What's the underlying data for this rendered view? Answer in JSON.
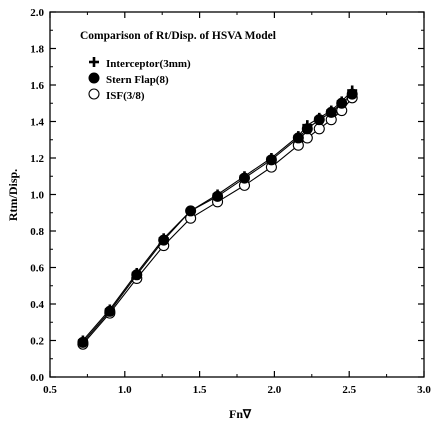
{
  "chart_data": {
    "type": "line",
    "title": "Comparison of Rt/Disp. of HSVA Model",
    "xlabel": "Fn∇",
    "ylabel": "Rtm/Disp.",
    "xlim": [
      0.5,
      3.0
    ],
    "ylim": [
      0.0,
      2.0
    ],
    "xticks": [
      "0.5",
      "1.0",
      "1.5",
      "2.0",
      "2.5",
      "3.0"
    ],
    "yticks": [
      "0.0",
      "0.2",
      "0.4",
      "0.6",
      "0.8",
      "1.0",
      "1.2",
      "1.4",
      "1.6",
      "1.8",
      "2.0"
    ],
    "grid": false,
    "legend_position": "top-left",
    "series": [
      {
        "name": "Interceptor(3mm)",
        "marker": "plus",
        "x": [
          0.72,
          0.9,
          1.08,
          1.26,
          1.44,
          1.62,
          1.8,
          1.98,
          2.16,
          2.22,
          2.3,
          2.38,
          2.45,
          2.52
        ],
        "y": [
          0.2,
          0.37,
          0.57,
          0.76,
          0.91,
          1.0,
          1.1,
          1.2,
          1.32,
          1.38,
          1.42,
          1.46,
          1.51,
          1.57
        ]
      },
      {
        "name": "Stern Flap(8)",
        "marker": "filled-circle",
        "x": [
          0.72,
          0.9,
          1.08,
          1.26,
          1.44,
          1.62,
          1.8,
          1.98,
          2.16,
          2.22,
          2.3,
          2.38,
          2.45,
          2.52
        ],
        "y": [
          0.19,
          0.36,
          0.56,
          0.75,
          0.91,
          0.99,
          1.09,
          1.19,
          1.31,
          1.36,
          1.41,
          1.45,
          1.5,
          1.55
        ]
      },
      {
        "name": "ISF(3/8)",
        "marker": "open-circle",
        "x": [
          0.72,
          0.9,
          1.08,
          1.26,
          1.44,
          1.62,
          1.8,
          1.98,
          2.16,
          2.22,
          2.3,
          2.38,
          2.45,
          2.52
        ],
        "y": [
          0.18,
          0.35,
          0.54,
          0.72,
          0.87,
          0.96,
          1.05,
          1.15,
          1.27,
          1.31,
          1.36,
          1.41,
          1.46,
          1.53
        ]
      }
    ]
  }
}
